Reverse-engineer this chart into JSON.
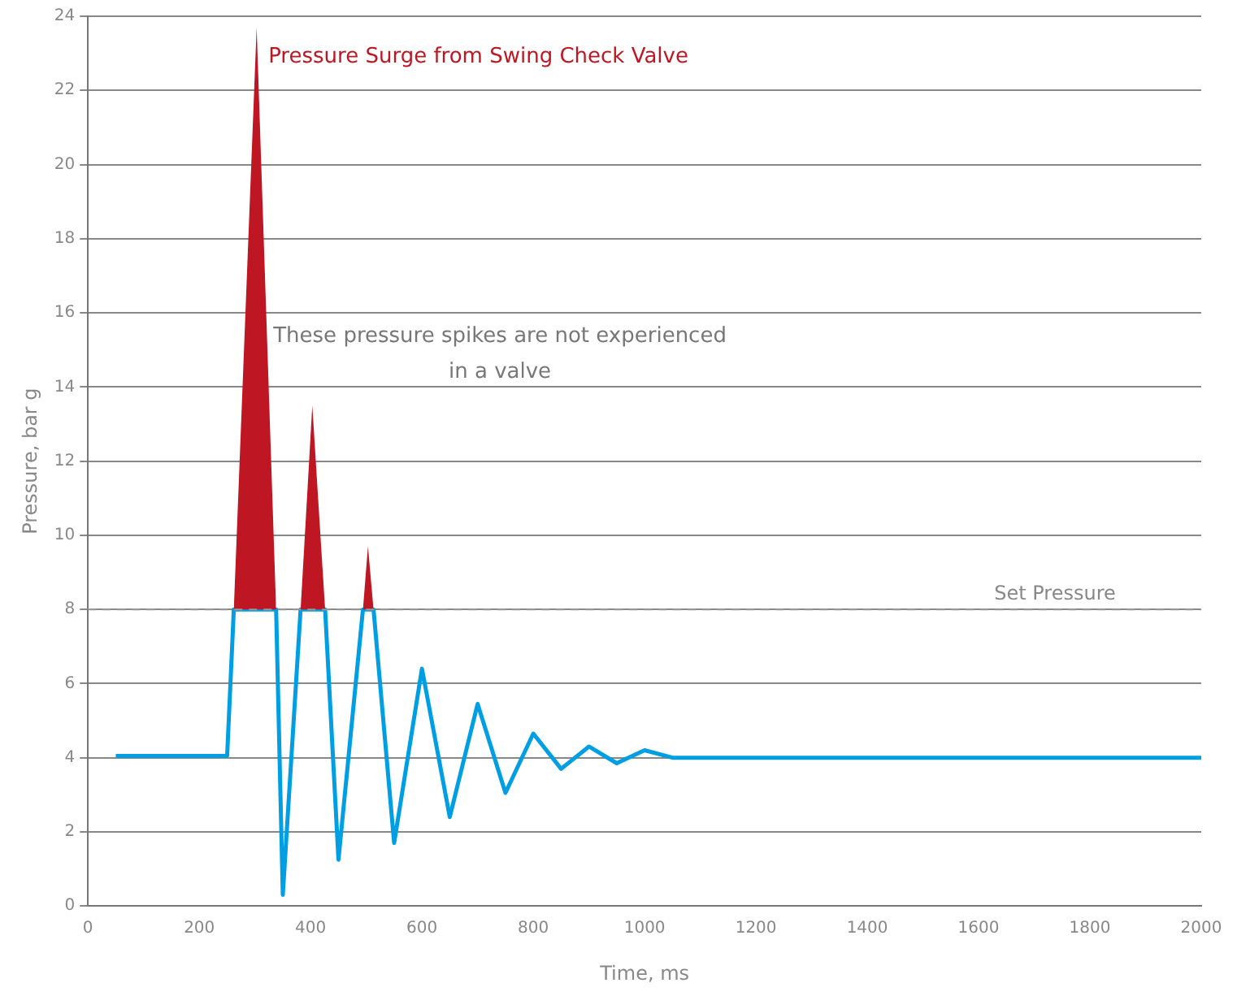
{
  "chart_data": {
    "type": "line",
    "xlabel": "Time, ms",
    "ylabel": "Pressure, bar g",
    "xlim": [
      0,
      2000
    ],
    "xticks": [
      0,
      200,
      400,
      600,
      800,
      1000,
      1200,
      1400,
      1600,
      1800,
      2000
    ],
    "ylim": [
      0,
      24
    ],
    "yticks": [
      0,
      2,
      4,
      6,
      8,
      10,
      12,
      14,
      16,
      18,
      20,
      22,
      24
    ],
    "grid": "y",
    "legend": false,
    "marker": "none",
    "line_style": "solid",
    "series": [
      {
        "type": "area",
        "color": "#be1622",
        "x": [
          262,
          303,
          338,
          360,
          382,
          403,
          426,
          460,
          494,
          503,
          513
        ],
        "values": [
          8,
          23.7,
          8,
          null,
          8,
          13.5,
          8,
          null,
          8,
          9.7,
          8
        ]
      },
      {
        "color": "#009fe3",
        "x": [
          50,
          250,
          262,
          338,
          350,
          382,
          426,
          450,
          494,
          513,
          550,
          600,
          650,
          700,
          750,
          800,
          850,
          900,
          950,
          1000,
          1050,
          2000
        ],
        "values": [
          4.05,
          4.05,
          8,
          8,
          0.3,
          8,
          8,
          1.25,
          8,
          8,
          1.7,
          6.4,
          2.4,
          5.45,
          3.05,
          4.65,
          3.7,
          4.3,
          3.85,
          4.2,
          4.0,
          4.0
        ]
      }
    ],
    "ref_lines": [
      {
        "axis": "y",
        "value": 8,
        "label": "Set Pressure",
        "color": "#999999",
        "line_style": "dashed"
      }
    ],
    "annotations": [
      "Pressure Surge from Swing Check Valve",
      "These pressure spikes are not experienced in a valve"
    ]
  }
}
